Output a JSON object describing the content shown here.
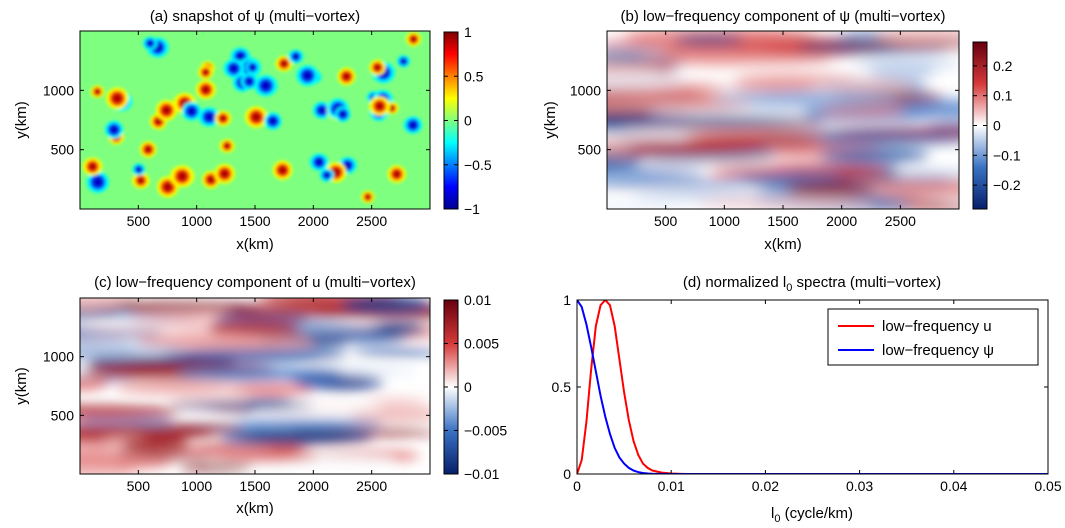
{
  "chart_data": [
    {
      "type": "heatmap",
      "title": "(a) snapshot of ψ (multi−vortex)",
      "xlabel": "x(km)",
      "ylabel": "y(km)",
      "xlim": [
        0,
        3000
      ],
      "ylim": [
        0,
        1500
      ],
      "x_ticks": [
        "500",
        "1000",
        "1500",
        "2000",
        "2500"
      ],
      "y_ticks": [
        "500",
        "1000"
      ],
      "colorbar": {
        "colormap": "jet",
        "range": [
          -1,
          1
        ],
        "ticks": [
          "1",
          "0.5",
          "0",
          "−0.5",
          "−1"
        ]
      }
    },
    {
      "type": "heatmap",
      "title": "(b) low−frequency component of ψ  (multi−vortex)",
      "xlabel": "x(km)",
      "ylabel": "y(km)",
      "xlim": [
        0,
        3000
      ],
      "ylim": [
        0,
        1500
      ],
      "x_ticks": [
        "500",
        "1000",
        "1500",
        "2000",
        "2500"
      ],
      "y_ticks": [
        "500",
        "1000"
      ],
      "colorbar": {
        "colormap": "blue-white-red",
        "range": [
          -0.28,
          0.28
        ],
        "ticks": [
          "0.2",
          "0.1",
          "0",
          "−0.1",
          "−0.2"
        ]
      }
    },
    {
      "type": "heatmap",
      "title": "(c) low−frequency component of u (multi−vortex)",
      "xlabel": "x(km)",
      "ylabel": "y(km)",
      "xlim": [
        0,
        3000
      ],
      "ylim": [
        0,
        1500
      ],
      "x_ticks": [
        "500",
        "1000",
        "1500",
        "2000",
        "2500"
      ],
      "y_ticks": [
        "500",
        "1000"
      ],
      "colorbar": {
        "colormap": "blue-white-red",
        "range": [
          -0.01,
          0.01
        ],
        "ticks": [
          "0.01",
          "0.005",
          "0",
          "−0.005",
          "−0.01"
        ]
      }
    },
    {
      "type": "line",
      "title": "(d) normalized l",
      "title_sub": "0",
      "title_rest": " spectra (multi−vortex)",
      "xlabel": "l",
      "xlabel_sub": "0",
      "xlabel_rest": " (cycle/km)",
      "ylabel": "",
      "xlim": [
        0,
        0.05
      ],
      "ylim": [
        0,
        1
      ],
      "x_ticks": [
        "0",
        "0.01",
        "0.02",
        "0.03",
        "0.04",
        "0.05"
      ],
      "y_ticks": [
        "0",
        "0.5",
        "1"
      ],
      "legend_position": "top-right",
      "grid": false,
      "series": [
        {
          "name": "low−frequency u",
          "color": "#ff0000",
          "x": [
            0,
            0.0005,
            0.001,
            0.0015,
            0.002,
            0.0025,
            0.003,
            0.0035,
            0.004,
            0.0045,
            0.005,
            0.0055,
            0.006,
            0.0065,
            0.007,
            0.0075,
            0.008,
            0.009,
            0.01,
            0.011,
            0.012,
            0.05
          ],
          "y": [
            0,
            0.08,
            0.3,
            0.6,
            0.85,
            0.97,
            1.0,
            0.97,
            0.85,
            0.66,
            0.47,
            0.31,
            0.19,
            0.11,
            0.06,
            0.035,
            0.02,
            0.008,
            0.003,
            0.001,
            0,
            0
          ]
        },
        {
          "name": "low−frequency ψ",
          "color": "#0000ff",
          "x": [
            0,
            0.0005,
            0.001,
            0.0015,
            0.002,
            0.0025,
            0.003,
            0.0035,
            0.004,
            0.0045,
            0.005,
            0.0055,
            0.006,
            0.0065,
            0.007,
            0.0075,
            0.008,
            0.009,
            0.01,
            0.05
          ],
          "y": [
            1.0,
            0.96,
            0.86,
            0.73,
            0.59,
            0.45,
            0.33,
            0.23,
            0.15,
            0.095,
            0.06,
            0.035,
            0.02,
            0.011,
            0.006,
            0.003,
            0.0015,
            0.0005,
            0,
            0
          ]
        }
      ]
    }
  ]
}
